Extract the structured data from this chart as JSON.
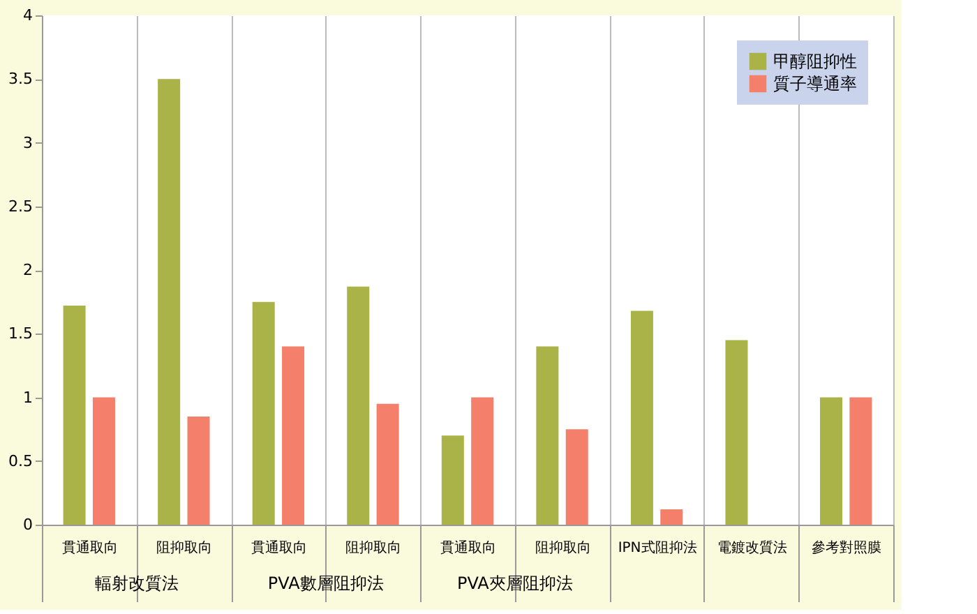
{
  "chart_data": {
    "type": "bar",
    "categories": [
      "貫通取向",
      "阻抑取向",
      "貫通取向",
      "阻抑取向",
      "貫通取向",
      "阻抑取向",
      "IPN式阻抑法",
      "電鍍改質法",
      "參考對照膜"
    ],
    "annotations": [
      "輻射改質法",
      "PVA數層阻抑法",
      "PVA夾層阻抑法"
    ],
    "series": [
      {
        "name": "甲醇阻抑性",
        "color": "#a9b347",
        "values": [
          1.72,
          3.5,
          1.75,
          1.87,
          0.7,
          1.4,
          1.68,
          1.45,
          1.0
        ]
      },
      {
        "name": "質子導通率",
        "color": "#f4806c",
        "values": [
          1.0,
          0.85,
          1.4,
          0.95,
          1.0,
          0.75,
          0.12,
          null,
          1.0
        ]
      }
    ],
    "ylim": [
      0,
      4
    ],
    "yticks": [
      0,
      0.5,
      1,
      1.5,
      2,
      2.5,
      3,
      3.5,
      4
    ],
    "grid": "x",
    "legend": "top right"
  }
}
